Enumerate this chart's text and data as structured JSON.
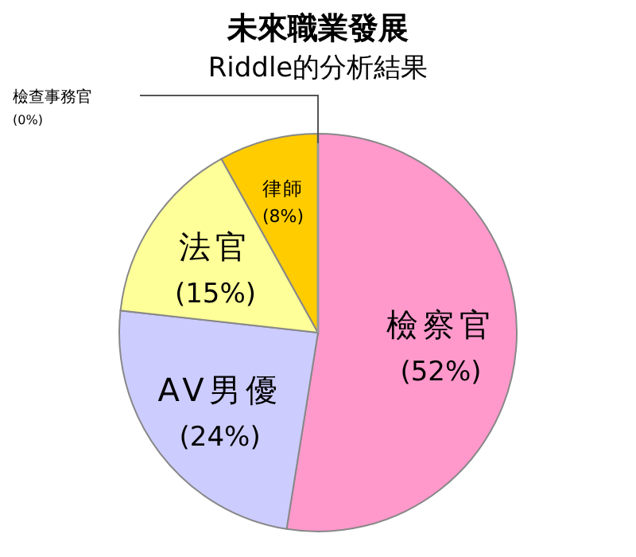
{
  "chart_data": {
    "type": "pie",
    "title": "未來職業發展",
    "subtitle": "Riddle的分析結果",
    "categories": [
      "檢察官",
      "AV男優",
      "法官",
      "律師",
      "檢查事務官"
    ],
    "values": [
      52,
      24,
      15,
      8,
      0
    ],
    "colors": [
      "#ff99cc",
      "#ccccff",
      "#ffff99",
      "#ffcc00",
      "#999999"
    ],
    "value_labels": [
      "(52%)",
      "(24%)",
      "(15%)",
      "(8%)",
      "(0%)"
    ]
  }
}
